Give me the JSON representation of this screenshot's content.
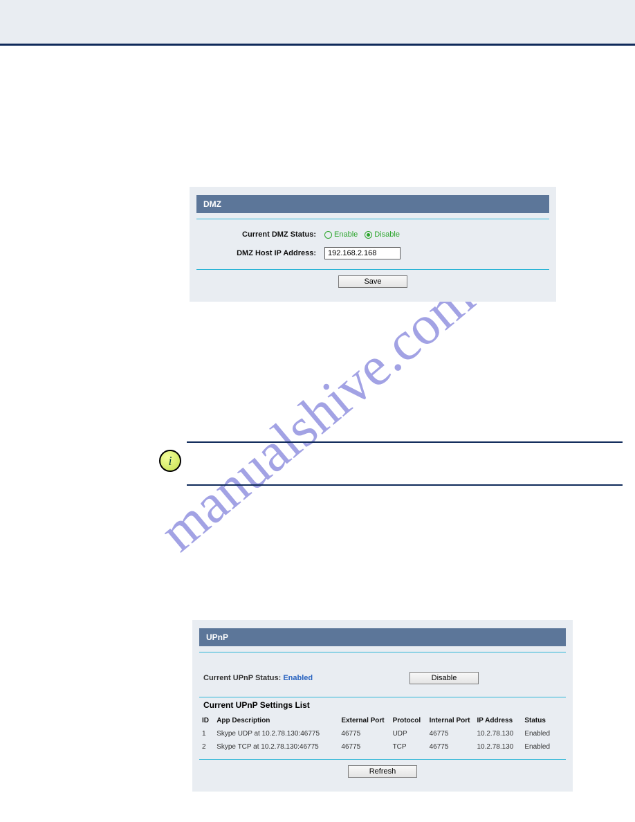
{
  "watermark": {
    "text": "manualshive.com"
  },
  "dmz": {
    "panel_title": "DMZ",
    "status_label": "Current DMZ Status:",
    "enable_label": "Enable",
    "disable_label": "Disable",
    "selected": "disable",
    "ip_label": "DMZ Host IP Address:",
    "ip_value": "192.168.2.168",
    "save_label": "Save",
    "colors": {
      "title_bg": "#5c7699",
      "title_fg": "#ffffff",
      "rule": "#2db5d6",
      "panel_bg": "#e9edf2",
      "radio": "#2ca52c"
    }
  },
  "separator": {
    "info_char": "i",
    "border_color": "#0f2a5a"
  },
  "upnp": {
    "panel_title": "UPnP",
    "status_prefix": "Current UPnP Status: ",
    "status_value": "Enabled",
    "toggle_label": "Disable",
    "list_title": "Current UPnP Settings List",
    "columns": [
      "ID",
      "App Description",
      "External Port",
      "Protocol",
      "Internal Port",
      "IP Address",
      "Status"
    ],
    "rows": [
      [
        "1",
        "Skype UDP at 10.2.78.130:46775",
        "46775",
        "UDP",
        "46775",
        "10.2.78.130",
        "Enabled"
      ],
      [
        "2",
        "Skype TCP at 10.2.78.130:46775",
        "46775",
        "TCP",
        "46775",
        "10.2.78.130",
        "Enabled"
      ]
    ],
    "refresh_label": "Refresh",
    "column_widths": [
      "4%",
      "34%",
      "14%",
      "10%",
      "13%",
      "13%",
      "12%"
    ]
  }
}
